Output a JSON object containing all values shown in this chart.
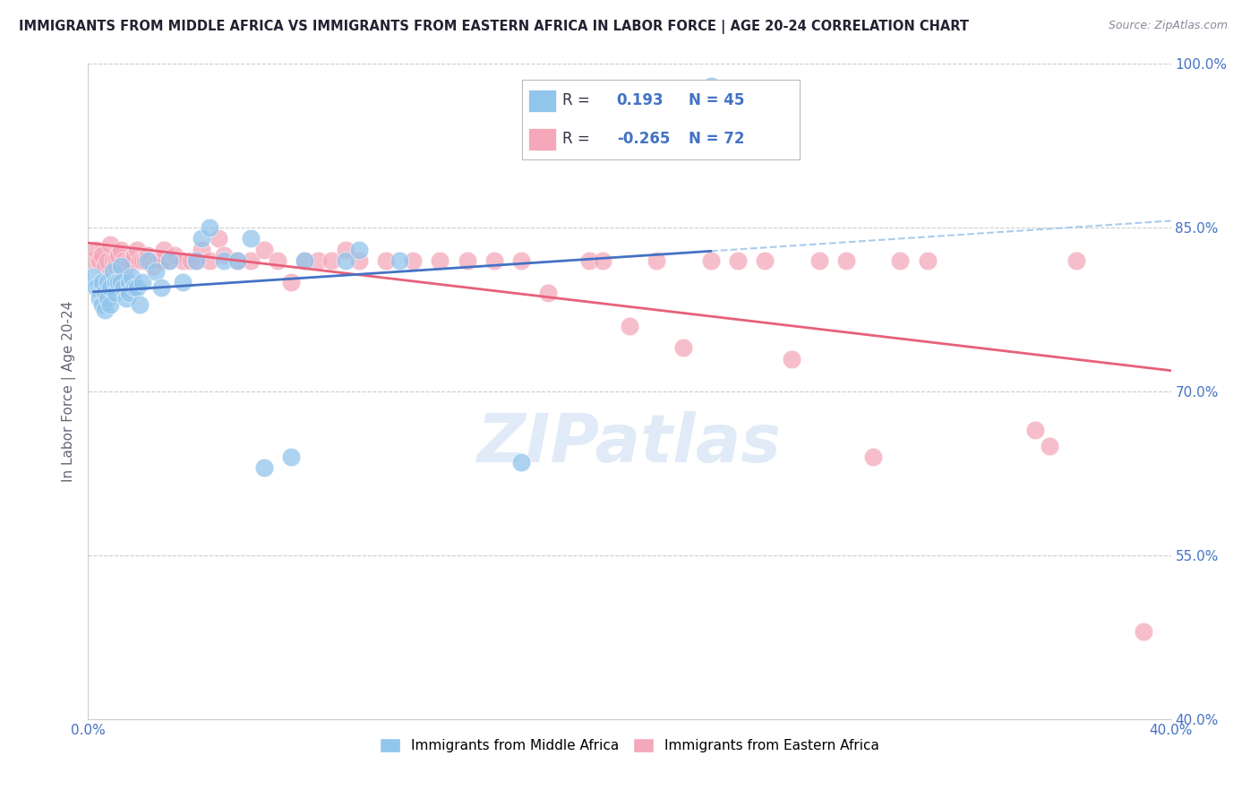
{
  "title": "IMMIGRANTS FROM MIDDLE AFRICA VS IMMIGRANTS FROM EASTERN AFRICA IN LABOR FORCE | AGE 20-24 CORRELATION CHART",
  "source": "Source: ZipAtlas.com",
  "ylabel": "In Labor Force | Age 20-24",
  "watermark": "ZIPatlas",
  "xlim": [
    0.0,
    0.4
  ],
  "ylim": [
    0.4,
    1.0
  ],
  "xticks": [
    0.0,
    0.1,
    0.2,
    0.3,
    0.4
  ],
  "xticklabels": [
    "0.0%",
    "",
    "",
    "",
    "40.0%"
  ],
  "yticks": [
    0.4,
    0.55,
    0.7,
    0.85,
    1.0
  ],
  "yticklabels": [
    "40.0%",
    "55.0%",
    "70.0%",
    "85.0%",
    "100.0%"
  ],
  "blue_R": 0.193,
  "blue_N": 45,
  "pink_R": -0.265,
  "pink_N": 72,
  "blue_color": "#92C5EC",
  "pink_color": "#F4A8BA",
  "blue_line_color": "#4472C4",
  "pink_line_color": "#E8607A",
  "background_color": "#FFFFFF",
  "grid_color": "#CCCCCC",
  "text_blue": "#4472C4",
  "text_dark": "#333344",
  "blue_scatter_x": [
    0.002,
    0.003,
    0.004,
    0.005,
    0.005,
    0.006,
    0.006,
    0.007,
    0.007,
    0.008,
    0.008,
    0.009,
    0.01,
    0.01,
    0.011,
    0.012,
    0.012,
    0.013,
    0.014,
    0.015,
    0.015,
    0.016,
    0.017,
    0.018,
    0.019,
    0.02,
    0.022,
    0.025,
    0.027,
    0.03,
    0.035,
    0.04,
    0.042,
    0.045,
    0.05,
    0.055,
    0.06,
    0.065,
    0.075,
    0.08,
    0.095,
    0.1,
    0.115,
    0.16,
    0.23
  ],
  "blue_scatter_y": [
    0.805,
    0.795,
    0.785,
    0.8,
    0.78,
    0.79,
    0.775,
    0.8,
    0.785,
    0.795,
    0.78,
    0.81,
    0.8,
    0.79,
    0.8,
    0.815,
    0.8,
    0.795,
    0.785,
    0.8,
    0.79,
    0.805,
    0.795,
    0.795,
    0.78,
    0.8,
    0.82,
    0.81,
    0.795,
    0.82,
    0.8,
    0.82,
    0.84,
    0.85,
    0.82,
    0.82,
    0.84,
    0.63,
    0.64,
    0.82,
    0.82,
    0.83,
    0.82,
    0.635,
    0.98
  ],
  "pink_scatter_x": [
    0.002,
    0.003,
    0.004,
    0.005,
    0.006,
    0.007,
    0.008,
    0.009,
    0.01,
    0.01,
    0.011,
    0.012,
    0.013,
    0.014,
    0.015,
    0.016,
    0.017,
    0.018,
    0.019,
    0.02,
    0.021,
    0.022,
    0.023,
    0.024,
    0.025,
    0.026,
    0.027,
    0.028,
    0.03,
    0.032,
    0.035,
    0.038,
    0.04,
    0.042,
    0.045,
    0.048,
    0.05,
    0.055,
    0.06,
    0.065,
    0.07,
    0.075,
    0.08,
    0.085,
    0.09,
    0.095,
    0.1,
    0.11,
    0.12,
    0.13,
    0.14,
    0.15,
    0.16,
    0.17,
    0.185,
    0.19,
    0.2,
    0.21,
    0.22,
    0.23,
    0.24,
    0.25,
    0.26,
    0.27,
    0.28,
    0.29,
    0.3,
    0.31,
    0.35,
    0.355,
    0.365,
    0.39
  ],
  "pink_scatter_y": [
    0.82,
    0.83,
    0.82,
    0.825,
    0.815,
    0.82,
    0.835,
    0.82,
    0.82,
    0.815,
    0.825,
    0.83,
    0.82,
    0.815,
    0.82,
    0.82,
    0.825,
    0.83,
    0.82,
    0.82,
    0.82,
    0.825,
    0.82,
    0.815,
    0.82,
    0.82,
    0.82,
    0.83,
    0.82,
    0.825,
    0.82,
    0.82,
    0.82,
    0.83,
    0.82,
    0.84,
    0.825,
    0.82,
    0.82,
    0.83,
    0.82,
    0.8,
    0.82,
    0.82,
    0.82,
    0.83,
    0.82,
    0.82,
    0.82,
    0.82,
    0.82,
    0.82,
    0.82,
    0.79,
    0.82,
    0.82,
    0.76,
    0.82,
    0.74,
    0.82,
    0.82,
    0.82,
    0.73,
    0.82,
    0.82,
    0.64,
    0.82,
    0.82,
    0.665,
    0.65,
    0.82,
    0.48
  ]
}
